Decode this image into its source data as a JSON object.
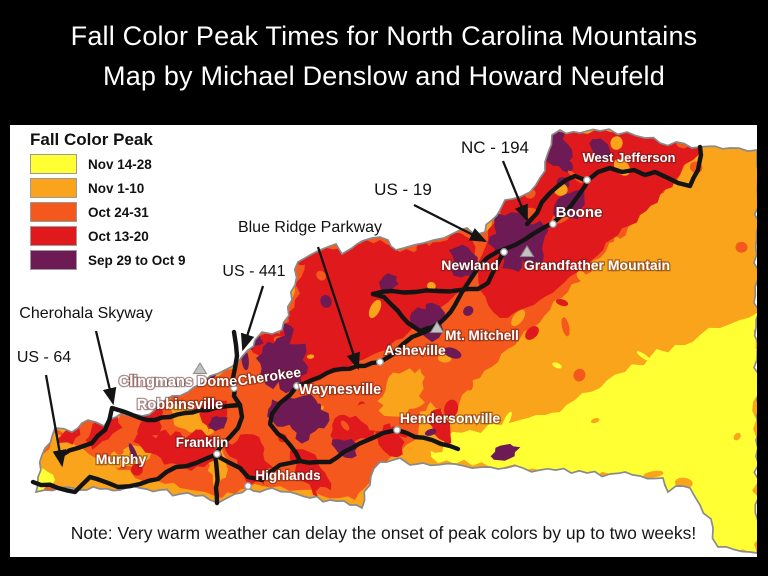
{
  "title": {
    "line1": "Fall Color Peak Times for North Carolina Mountains",
    "line2": "Map by Michael Denslow and Howard Neufeld"
  },
  "legend": {
    "title": "Fall Color Peak",
    "items": [
      {
        "label": "Nov 14-28",
        "color": "#FFFF33"
      },
      {
        "label": "Nov 1-10",
        "color": "#F9A41B"
      },
      {
        "label": "Oct 24-31",
        "color": "#F4581C"
      },
      {
        "label": "Oct 13-20",
        "color": "#E0191C"
      },
      {
        "label": "Sep 29 to Oct 9",
        "color": "#6E1A55"
      }
    ]
  },
  "map": {
    "outline_color": "#8a8a8a",
    "road_color": "#141414",
    "road_labels": [
      {
        "label": "NC - 194"
      },
      {
        "label": "US - 19"
      },
      {
        "label": "Blue Ridge Parkway"
      },
      {
        "label": "US - 441"
      },
      {
        "label": "Cherohala Skyway"
      },
      {
        "label": "US - 64"
      }
    ],
    "towns": [
      {
        "label": "West Jefferson",
        "marker": "circle"
      },
      {
        "label": "Boone",
        "marker": "circle"
      },
      {
        "label": "Newland",
        "marker": "circle"
      },
      {
        "label": "Grandfather Mountain",
        "marker": "triangle"
      },
      {
        "label": "Mt. Mitchell",
        "marker": "triangle"
      },
      {
        "label": "Asheville",
        "marker": "circle"
      },
      {
        "label": "Waynesville",
        "marker": "circle"
      },
      {
        "label": "Cherokee",
        "marker": "circle"
      },
      {
        "label": "Hendersonville",
        "marker": "circle"
      },
      {
        "label": "Clingmans Dome",
        "marker": "triangle"
      },
      {
        "label": "Robbinsville",
        "marker": "none"
      },
      {
        "label": "Franklin",
        "marker": "circle"
      },
      {
        "label": "Murphy",
        "marker": "none"
      },
      {
        "label": "Highlands",
        "marker": "circle"
      }
    ]
  },
  "note": "Note: Very warm weather can delay the onset of peak colors by up to two weeks!"
}
